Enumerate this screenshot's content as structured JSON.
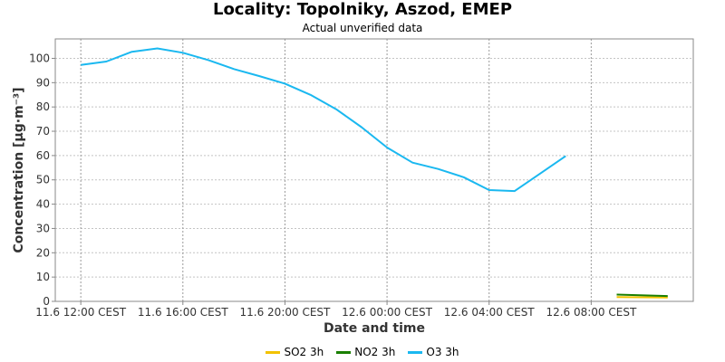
{
  "chart_data": {
    "type": "line",
    "title": "Locality: Topolniky, Aszod, EMEP",
    "subtitle": "Actual unverified data",
    "xlabel": "Date and time",
    "ylabel": "Concentration [µg·m⁻³]",
    "ylim": [
      0,
      108
    ],
    "xlim": [
      "2011-06-11 11:00",
      "2011-06-12 12:00"
    ],
    "y_ticks": [
      0,
      10,
      20,
      30,
      40,
      50,
      60,
      70,
      80,
      90,
      100
    ],
    "x_ticks": [
      {
        "t": "2011-06-11 12:00",
        "label": "11.6 12:00 CEST"
      },
      {
        "t": "2011-06-11 16:00",
        "label": "11.6 16:00 CEST"
      },
      {
        "t": "2011-06-11 20:00",
        "label": "11.6 20:00 CEST"
      },
      {
        "t": "2011-06-12 00:00",
        "label": "12.6 00:00 CEST"
      },
      {
        "t": "2011-06-12 04:00",
        "label": "12.6 04:00 CEST"
      },
      {
        "t": "2011-06-12 08:00",
        "label": "12.6 08:00 CEST"
      }
    ],
    "grid": true,
    "legend_position": "bottom",
    "series": [
      {
        "name": "SO2 3h",
        "color": "#f2c200",
        "x": [
          "2011-06-12 09:00",
          "2011-06-12 11:00"
        ],
        "y": [
          1.8,
          1.6
        ]
      },
      {
        "name": "NO2 3h",
        "color": "#1a7f00",
        "x": [
          "2011-06-12 09:00",
          "2011-06-12 11:00"
        ],
        "y": [
          2.8,
          2.2
        ]
      },
      {
        "name": "O3 3h",
        "color": "#1ab8f0",
        "x": [
          "2011-06-11 12:00",
          "2011-06-11 13:00",
          "2011-06-11 14:00",
          "2011-06-11 15:00",
          "2011-06-11 16:00",
          "2011-06-11 17:00",
          "2011-06-11 18:00",
          "2011-06-11 19:00",
          "2011-06-11 20:00",
          "2011-06-11 21:00",
          "2011-06-11 22:00",
          "2011-06-11 23:00",
          "2011-06-12 00:00",
          "2011-06-12 01:00",
          "2011-06-12 02:00",
          "2011-06-12 03:00",
          "2011-06-12 04:00",
          "2011-06-12 05:00",
          "2011-06-12 06:00",
          "2011-06-12 07:00"
        ],
        "y": [
          97.3,
          98.7,
          102.7,
          104.1,
          102.3,
          99.3,
          95.6,
          92.7,
          89.6,
          85.0,
          79.1,
          71.7,
          63.3,
          57.1,
          54.5,
          51.1,
          45.8,
          45.4,
          52.6,
          59.8
        ]
      }
    ]
  }
}
